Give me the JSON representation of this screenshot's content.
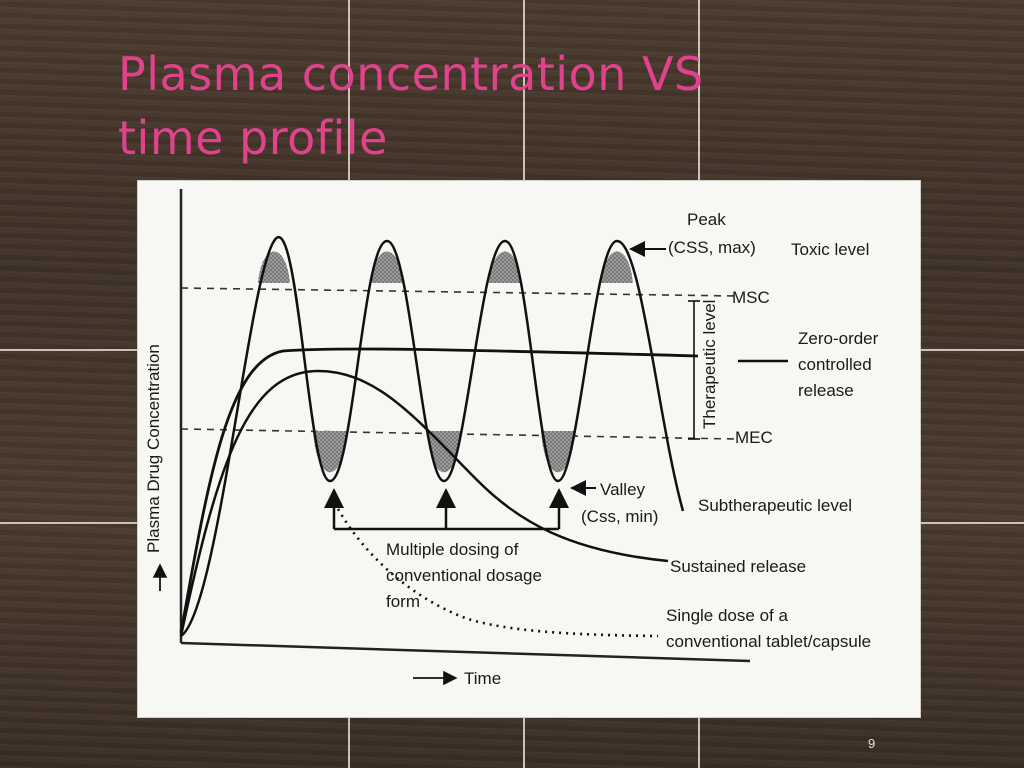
{
  "slide": {
    "title_line1": "Plasma concentration VS",
    "title_line2": "time profile",
    "page_number": "9",
    "title_color": "#e0438c"
  },
  "figure": {
    "axes": {
      "y_label": "Plasma Drug Concentration",
      "x_label": "Time"
    },
    "labels": {
      "peak": "Peak",
      "peak_formula": "(CSS, max)",
      "toxic_level": "Toxic level",
      "msc": "MSC",
      "therapeutic_level": "Therapeutic level",
      "zero_order_1": "Zero-order",
      "zero_order_2": "controlled",
      "zero_order_3": "release",
      "mec": "MEC",
      "valley": "Valley",
      "valley_formula": "(Css, min)",
      "subtherapeutic": "Subtherapeutic level",
      "multiple_dosing_1": "Multiple dosing of",
      "multiple_dosing_2": "conventional dosage",
      "multiple_dosing_3": "form",
      "sustained_release": "Sustained release",
      "single_dose_1": "Single dose of a",
      "single_dose_2": "conventional tablet/capsule"
    }
  }
}
